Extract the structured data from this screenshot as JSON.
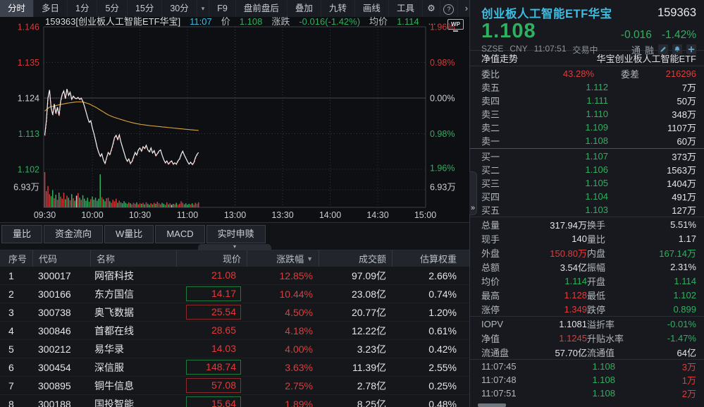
{
  "colors": {
    "red": "#e23b3b",
    "green": "#2eb05e",
    "cyan": "#3bbce0",
    "avg_line": "#d9a33b",
    "price_line": "#f2f2f2",
    "volume_up": "#d23c3c",
    "volume_down": "#2eb05e",
    "volume_flat": "#d0d3d8"
  },
  "toolbar": {
    "left_items": [
      {
        "label": "分时",
        "cls": "active"
      },
      {
        "label": "多日",
        "cls": ""
      },
      {
        "label": "1分",
        "cls": ""
      },
      {
        "label": "5分",
        "cls": ""
      },
      {
        "label": "15分",
        "cls": ""
      },
      {
        "label": "30分",
        "cls": ""
      }
    ],
    "caret": "▾",
    "right_items": [
      {
        "label": "F9"
      },
      {
        "label": "盘前盘后"
      },
      {
        "label": "叠加"
      },
      {
        "label": "九转"
      },
      {
        "label": "画线"
      },
      {
        "label": "工具"
      }
    ],
    "gear": "⚙",
    "help": "?",
    "chevron": "›"
  },
  "chart": {
    "header": {
      "code_name": "159363[创业板人工智能ETF华宝]",
      "time": "11:07",
      "price_label": "价",
      "price": "1.108",
      "chg_label": "涨跌",
      "chg": "-0.016(-1.42%)",
      "avg_label": "均价",
      "avg": "1.114",
      "more": "...",
      "wp": "WP"
    },
    "y_left": [
      {
        "t": "1.146",
        "c": "r"
      },
      {
        "t": "1.135",
        "c": "r"
      },
      {
        "t": "1.124",
        "c": "w"
      },
      {
        "t": "1.113",
        "c": "g"
      },
      {
        "t": "1.102",
        "c": "g"
      },
      {
        "t": "6.93万",
        "c": "w"
      }
    ],
    "y_right": [
      {
        "t": "1.96%",
        "c": "r"
      },
      {
        "t": "0.98%",
        "c": "r"
      },
      {
        "t": "0.00%",
        "c": "w"
      },
      {
        "t": "0.98%",
        "c": "g"
      },
      {
        "t": "1.96%",
        "c": "g"
      },
      {
        "t": "6.93万",
        "c": "w"
      }
    ],
    "x_labels": [
      "09:30",
      "10:00",
      "10:30",
      "11:00",
      "13:00",
      "13:30",
      "14:00",
      "14:30",
      "15:00"
    ]
  },
  "chart_data": {
    "type": "line",
    "symbol": "159363",
    "name": "创业板人工智能ETF华宝",
    "time_of_last_point": "11:07",
    "prev_close": 1.124,
    "last": 1.108,
    "high": 1.128,
    "low": 1.102,
    "y_max": 1.146,
    "y_min": 1.102,
    "pct_labels": [
      1.96,
      0.98,
      0.0,
      -0.98,
      -1.96
    ],
    "volume_scale_wan": 6.93,
    "session_minutes": 97,
    "price": [
      1.1125,
      1.117,
      1.124,
      1.1265,
      1.121,
      1.1188,
      1.1222,
      1.1192,
      1.1212,
      1.1186,
      1.123,
      1.1252,
      1.1262,
      1.1238,
      1.1268,
      1.1248,
      1.1258,
      1.1236,
      1.1246,
      1.124,
      1.1238,
      1.1242,
      1.1236,
      1.124,
      1.123,
      1.1215,
      1.1198,
      1.118,
      1.1165,
      1.117,
      1.1148,
      1.113,
      1.111,
      1.1088,
      1.1072,
      1.106,
      1.1068,
      1.1048,
      1.1038,
      1.1056,
      1.1072,
      1.1065,
      1.108,
      1.1098,
      1.1118,
      1.1125,
      1.1112,
      1.1126,
      1.1105,
      1.1088,
      1.1072,
      1.1055,
      1.1045,
      1.1052,
      1.1038,
      1.1044,
      1.1058,
      1.1072,
      1.1064,
      1.108,
      1.1086,
      1.1076,
      1.109,
      1.1084,
      1.1094,
      1.108,
      1.1074,
      1.1086,
      1.107,
      1.1078,
      1.1062,
      1.1068,
      1.1076,
      1.108,
      1.1064,
      1.105,
      1.104,
      1.1046,
      1.1036,
      1.1042,
      1.1046,
      1.1036,
      1.104,
      1.1036,
      1.1046,
      1.1052,
      1.1066,
      1.1076,
      1.1064,
      1.1054,
      1.1044,
      1.1036,
      1.1042,
      1.1035,
      1.104,
      1.1056,
      1.1066,
      1.1072
    ],
    "avg_keypoints": [
      [
        0,
        1.12
      ],
      [
        3,
        1.1212
      ],
      [
        8,
        1.1218
      ],
      [
        14,
        1.1224
      ],
      [
        20,
        1.1228
      ],
      [
        24,
        1.1228
      ],
      [
        28,
        1.1222
      ],
      [
        32,
        1.1212
      ],
      [
        36,
        1.12
      ],
      [
        40,
        1.1188
      ],
      [
        44,
        1.118
      ],
      [
        48,
        1.1174
      ],
      [
        52,
        1.1168
      ],
      [
        56,
        1.1163
      ],
      [
        60,
        1.1159
      ],
      [
        66,
        1.1155
      ],
      [
        72,
        1.1152
      ],
      [
        78,
        1.1149
      ],
      [
        84,
        1.1146
      ],
      [
        90,
        1.1143
      ],
      [
        97,
        1.114
      ]
    ],
    "volume_wan": [
      6.93,
      3.2,
      4.2,
      2.6,
      2.2,
      3.4,
      1.8,
      2.5,
      1.5,
      2.9,
      2.1,
      1.7,
      2.9,
      1.6,
      2.3,
      1.9,
      1.4,
      2.6,
      1.8,
      1.3,
      2.3,
      2.8,
      1.9,
      1.5,
      2.4,
      1.7,
      1.3,
      1.9,
      1.1,
      1.6,
      2.1,
      1.5,
      1.9,
      1.3,
      1.7,
      6.5,
      2.0,
      1.6,
      1.2,
      1.8,
      1.9,
      1.2,
      0.9,
      1.5,
      1.2,
      1.7,
      0.9,
      1.3,
      1.0,
      0.8,
      1.2,
      0.9,
      0.7,
      1.0,
      0.8,
      0.6,
      0.9,
      0.7,
      1.0,
      0.6,
      0.8,
      0.7,
      0.9,
      0.6,
      1.0,
      0.7,
      0.5,
      0.8,
      0.6,
      0.9,
      0.7,
      1.1,
      0.8,
      0.6,
      0.9,
      0.7,
      0.5,
      1.0,
      0.6,
      0.8,
      0.5,
      0.7,
      0.6,
      0.9,
      0.5,
      0.7,
      1.2,
      0.9,
      0.6,
      0.8,
      0.5,
      0.7,
      0.6,
      0.8,
      0.5,
      0.9,
      0.7,
      1.0
    ]
  },
  "tabs": [
    {
      "label": "量比"
    },
    {
      "label": "资金流向"
    },
    {
      "label": "W量比"
    },
    {
      "label": "MACD"
    },
    {
      "label": "实时申赎"
    }
  ],
  "collapse_glyph": "▾",
  "table": {
    "columns": [
      {
        "label": "序号"
      },
      {
        "label": "代码"
      },
      {
        "label": "名称"
      },
      {
        "label": "现价"
      },
      {
        "label": "涨跌幅"
      },
      {
        "label": "成交额"
      },
      {
        "label": "估算权重"
      }
    ],
    "sort_icon": "▼",
    "rows": [
      {
        "seq": "1",
        "code": "300017",
        "name": "网宿科技",
        "price": "21.08",
        "chg": "12.85%",
        "turnover": "97.09亿",
        "weight": "2.66%",
        "flash": ""
      },
      {
        "seq": "2",
        "code": "300166",
        "name": "东方国信",
        "price": "14.17",
        "chg": "10.44%",
        "turnover": "23.08亿",
        "weight": "0.74%",
        "flash": "fg"
      },
      {
        "seq": "3",
        "code": "300738",
        "name": "奥飞数据",
        "price": "25.54",
        "chg": "4.50%",
        "turnover": "20.77亿",
        "weight": "1.20%",
        "flash": "fr"
      },
      {
        "seq": "4",
        "code": "300846",
        "name": "首都在线",
        "price": "28.65",
        "chg": "4.18%",
        "turnover": "12.22亿",
        "weight": "0.61%",
        "flash": ""
      },
      {
        "seq": "5",
        "code": "300212",
        "name": "易华录",
        "price": "14.03",
        "chg": "4.00%",
        "turnover": "3.23亿",
        "weight": "0.42%",
        "flash": ""
      },
      {
        "seq": "6",
        "code": "300454",
        "name": "深信服",
        "price": "148.74",
        "chg": "3.63%",
        "turnover": "11.39亿",
        "weight": "2.55%",
        "flash": "fg"
      },
      {
        "seq": "7",
        "code": "300895",
        "name": "铜牛信息",
        "price": "57.08",
        "chg": "2.75%",
        "turnover": "2.78亿",
        "weight": "0.25%",
        "flash": "fr"
      },
      {
        "seq": "8",
        "code": "300188",
        "name": "国投智能",
        "price": "15.64",
        "chg": "1.89%",
        "turnover": "8.25亿",
        "weight": "0.48%",
        "flash": "fg"
      }
    ]
  },
  "panel": {
    "title": "创业板人工智能ETF华宝",
    "code": "159363",
    "price": "1.108",
    "chg": "-0.016",
    "chg_pct": "-1.42%",
    "exchange": "SZSE",
    "currency": "CNY",
    "time": "11:07:51",
    "status": "交易中",
    "tag1": "通",
    "tag2": "融",
    "nav_label": "净值走势",
    "nav_name": "华宝创业板人工智能ETF",
    "weibi_label": "委比",
    "weibi": "43.28%",
    "weicha_label": "委差",
    "weicha": "216296",
    "asks": [
      {
        "label": "卖五",
        "price": "1.112",
        "vol": "7万"
      },
      {
        "label": "卖四",
        "price": "1.111",
        "vol": "50万"
      },
      {
        "label": "卖三",
        "price": "1.110",
        "vol": "348万"
      },
      {
        "label": "卖二",
        "price": "1.109",
        "vol": "1107万"
      },
      {
        "label": "卖一",
        "price": "1.108",
        "vol": "60万"
      }
    ],
    "bids": [
      {
        "label": "买一",
        "price": "1.107",
        "vol": "373万"
      },
      {
        "label": "买二",
        "price": "1.106",
        "vol": "1563万"
      },
      {
        "label": "买三",
        "price": "1.105",
        "vol": "1404万"
      },
      {
        "label": "买四",
        "price": "1.104",
        "vol": "491万"
      },
      {
        "label": "买五",
        "price": "1.103",
        "vol": "127万"
      }
    ],
    "stats": [
      {
        "l1": "总量",
        "v1": "317.94万",
        "c1": "w",
        "l2": "换手",
        "v2": "5.51%",
        "c2": "w"
      },
      {
        "l1": "现手",
        "v1": "140",
        "c1": "w",
        "l2": "量比",
        "v2": "1.17",
        "c2": "w"
      },
      {
        "l1": "外盘",
        "v1": "150.80万",
        "c1": "r",
        "l2": "内盘",
        "v2": "167.14万",
        "c2": "g"
      },
      {
        "l1": "总额",
        "v1": "3.54亿",
        "c1": "w",
        "l2": "振幅",
        "v2": "2.31%",
        "c2": "w"
      },
      {
        "l1": "均价",
        "v1": "1.114",
        "c1": "g",
        "l2": "开盘",
        "v2": "1.114",
        "c2": "g"
      },
      {
        "l1": "最高",
        "v1": "1.128",
        "c1": "r",
        "l2": "最低",
        "v2": "1.102",
        "c2": "g"
      },
      {
        "l1": "涨停",
        "v1": "1.349",
        "c1": "r",
        "l2": "跌停",
        "v2": "0.899",
        "c2": "g"
      }
    ],
    "iopv": [
      {
        "l1": "IOPV",
        "v1": "1.1081",
        "c1": "w",
        "l2": "溢折率",
        "v2": "-0.01%",
        "c2": "g"
      },
      {
        "l1": "净值",
        "v1": "1.1245",
        "c1": "r",
        "l2": "升贴水率",
        "v2": "-1.47%",
        "c2": "g"
      },
      {
        "l1": "流通盘",
        "v1": "57.70亿",
        "c1": "w",
        "l2": "流通值",
        "v2": "64亿",
        "c2": "w"
      }
    ],
    "ticks": [
      {
        "time": "11:07:45",
        "price": "1.108",
        "vol": "3万"
      },
      {
        "time": "11:07:48",
        "price": "1.108",
        "vol": "1万"
      },
      {
        "time": "11:07:51",
        "price": "1.108",
        "vol": "2万"
      }
    ],
    "handle": "»"
  }
}
